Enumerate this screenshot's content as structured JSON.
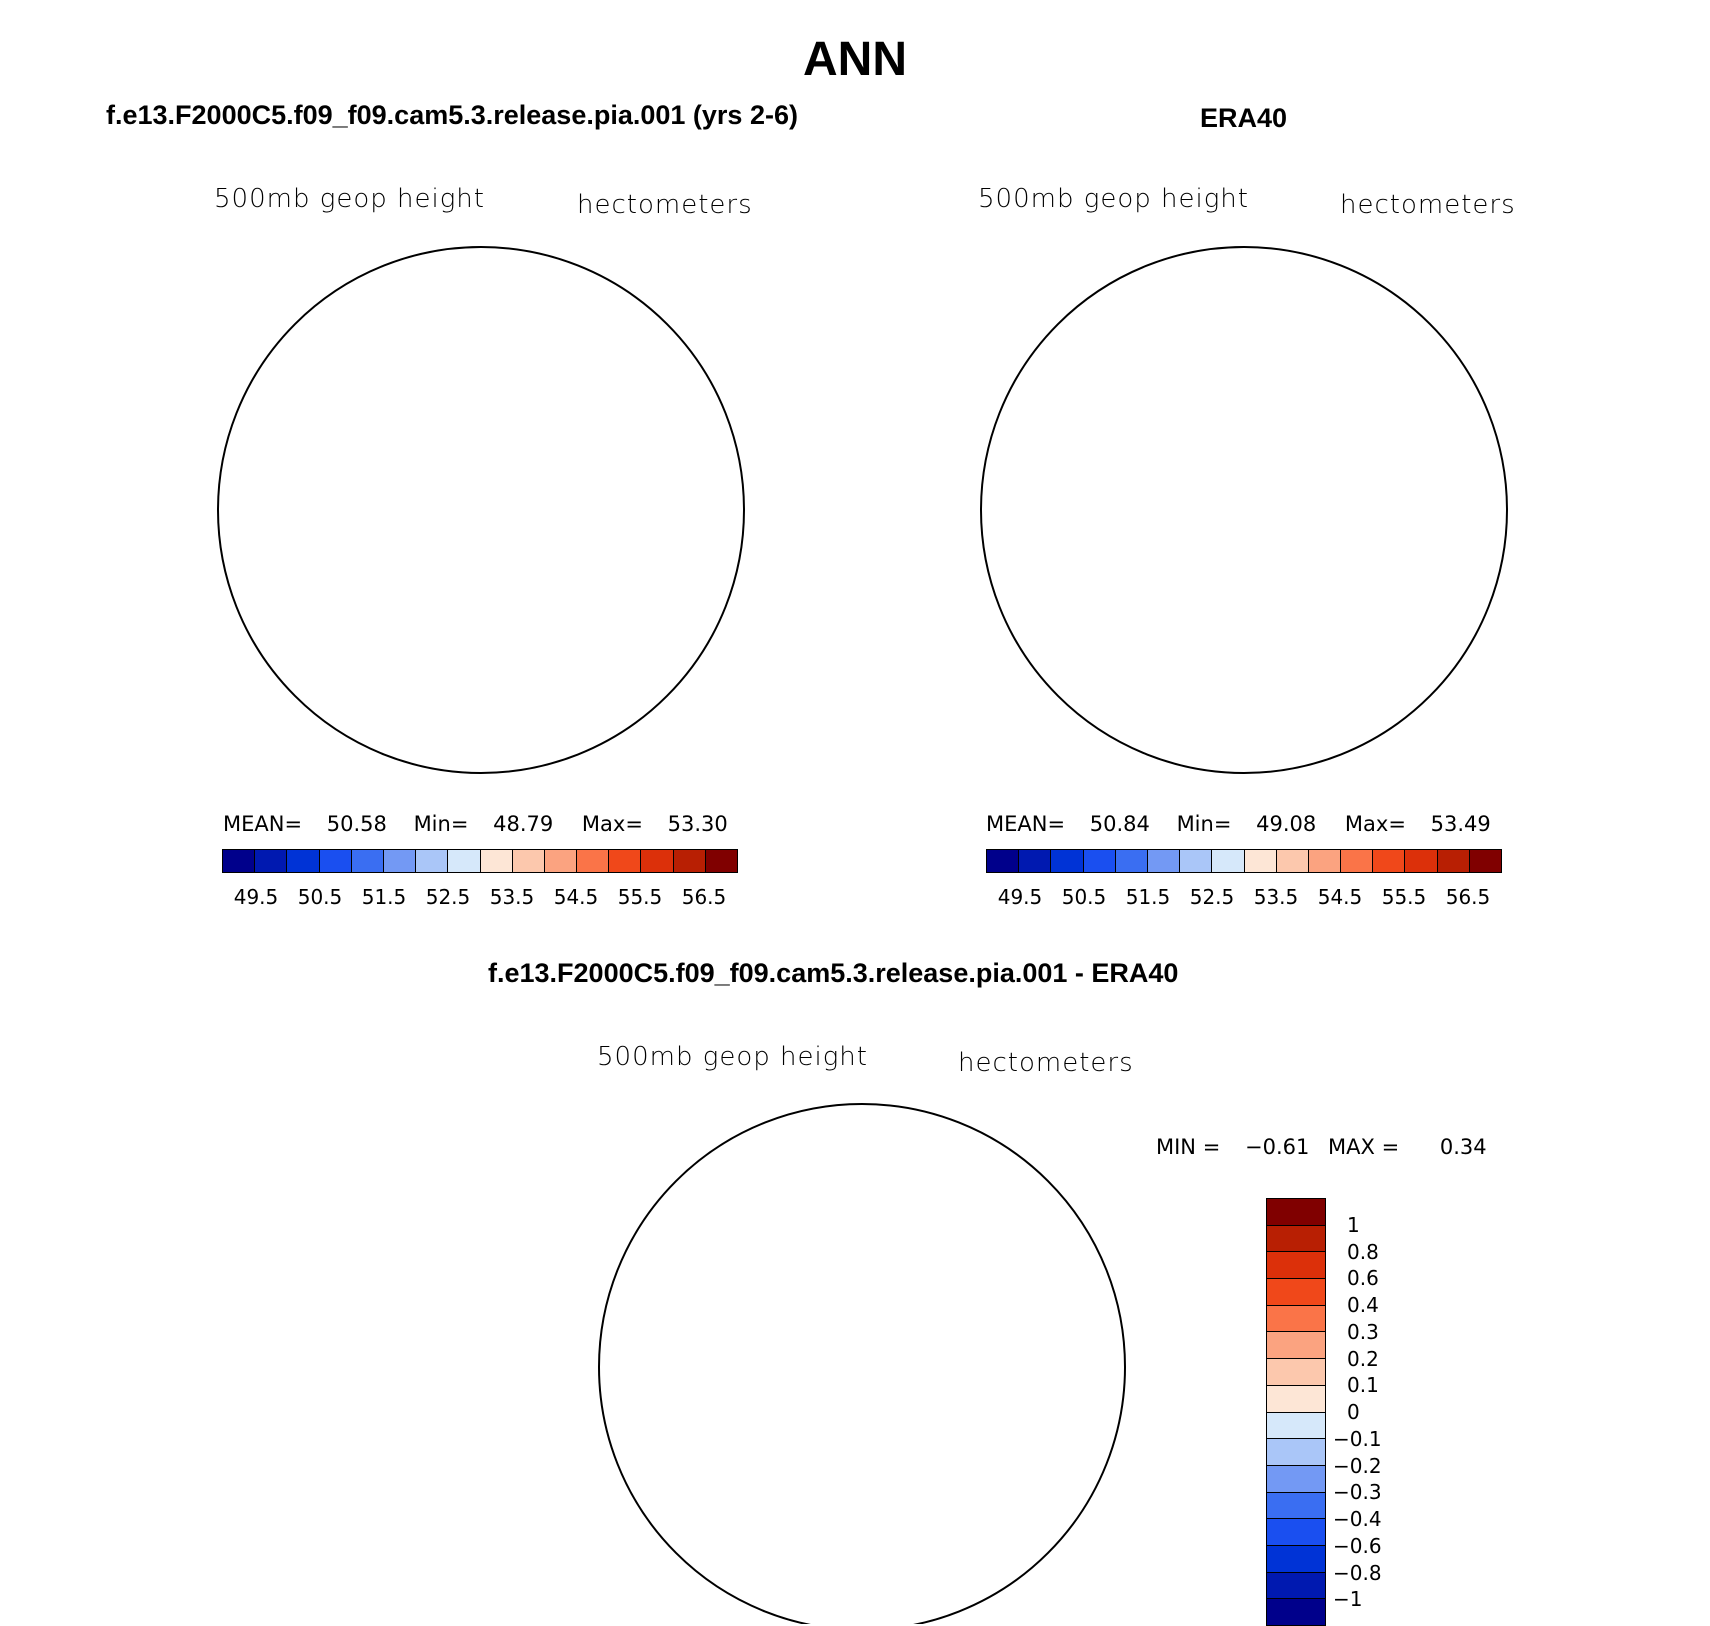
{
  "title": "ANN",
  "panels": {
    "top_left": {
      "title": "f.e13.F2000C5.f09_f09.cam5.3.release.pia.001 (yrs 2-6)",
      "left_label": "500mb geop height",
      "right_label": "hectometers",
      "stats": {
        "mean_label": "MEAN=",
        "mean": "50.58",
        "min_label": "Min=",
        "min": "48.79",
        "max_label": "Max=",
        "max": "53.30"
      }
    },
    "top_right": {
      "title": "ERA40",
      "left_label": "500mb geop height",
      "right_label": "hectometers",
      "stats": {
        "mean_label": "MEAN=",
        "mean": "50.84",
        "min_label": "Min=",
        "min": "49.08",
        "max_label": "Max=",
        "max": "53.49"
      }
    },
    "bottom": {
      "title": "f.e13.F2000C5.f09_f09.cam5.3.release.pia.001 - ERA40",
      "left_label": "500mb geop height",
      "right_label": "hectometers",
      "stats": {
        "min_label": "MIN =",
        "min": "−0.61",
        "max_label": "MAX =",
        "max": "0.34"
      }
    }
  },
  "colorbar_horizontal": {
    "colors": [
      "#00008b",
      "#0019b0",
      "#0033d6",
      "#1a4ff0",
      "#3a6ef2",
      "#7399f4",
      "#aac6f8",
      "#d6e8fa",
      "#fde6d6",
      "#fcc8ad",
      "#fba380",
      "#fa7448",
      "#f0481a",
      "#dc300a",
      "#b81f03",
      "#800000"
    ],
    "ticks": [
      "49.5",
      "50.5",
      "51.5",
      "52.5",
      "53.5",
      "54.5",
      "55.5",
      "56.5"
    ]
  },
  "colorbar_vertical": {
    "colors": [
      "#800000",
      "#b81f03",
      "#dc300a",
      "#f0481a",
      "#fa7448",
      "#fba380",
      "#fcc8ad",
      "#fde6d6",
      "#d6e8fa",
      "#aac6f8",
      "#7399f4",
      "#3a6ef2",
      "#1a4ff0",
      "#0033d6",
      "#0019b0",
      "#00008b"
    ],
    "ticks": [
      "1",
      "0.8",
      "0.6",
      "0.4",
      "0.3",
      "0.2",
      "0.1",
      "0",
      "−0.1",
      "−0.2",
      "−0.3",
      "−0.4",
      "−0.6",
      "−0.8",
      "−1"
    ]
  }
}
